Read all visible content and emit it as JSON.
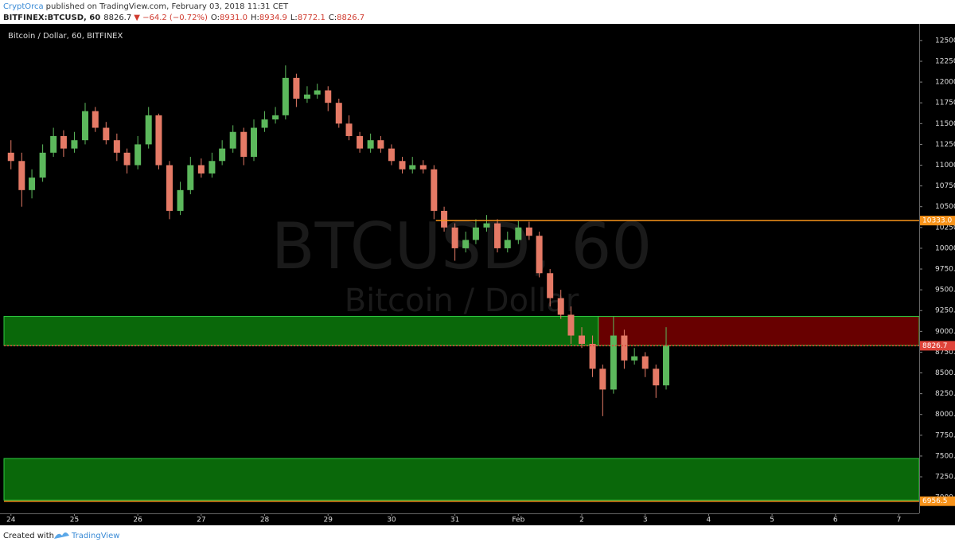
{
  "header": {
    "author": "CryptOrca",
    "published": "published on TradingView.com, February 03, 2018 11:31 CET",
    "symbol": "BITFINEX:BTCUSD, 60",
    "last": "8826.7",
    "change": "▼ −64.2 (−0.72%)",
    "ohlc": [
      {
        "label": "O:",
        "value": "8931.0"
      },
      {
        "label": "H:",
        "value": "8934.9"
      },
      {
        "label": "L:",
        "value": "8772.1"
      },
      {
        "label": "C:",
        "value": "8826.7"
      }
    ]
  },
  "footer": {
    "created": "Created with",
    "brand": "TradingView"
  },
  "chart_data": {
    "type": "candlestick",
    "title": "Bitcoin / Dollar, 60, BITFINEX",
    "watermark": "BTCUSD, 60",
    "watermark_sub": "Bitcoin / Dollar",
    "up_color": "#5cb85c",
    "down_color": "#e57a66",
    "xlim": [
      -0.11,
      14.32
    ],
    "ylim": [
      6810,
      12700
    ],
    "xticks": [
      {
        "value": 0,
        "label": "24"
      },
      {
        "value": 1,
        "label": "25"
      },
      {
        "value": 2,
        "label": "26"
      },
      {
        "value": 3,
        "label": "27"
      },
      {
        "value": 4,
        "label": "28"
      },
      {
        "value": 5,
        "label": "29"
      },
      {
        "value": 6,
        "label": "30"
      },
      {
        "value": 7,
        "label": "31"
      },
      {
        "value": 8,
        "label": "Feb"
      },
      {
        "value": 9,
        "label": "2"
      },
      {
        "value": 10,
        "label": "3"
      },
      {
        "value": 11,
        "label": "4"
      },
      {
        "value": 12,
        "label": "5"
      },
      {
        "value": 13,
        "label": "6"
      },
      {
        "value": 14,
        "label": "7"
      }
    ],
    "yticks": [
      {
        "value": 7000,
        "label": "7000.0"
      },
      {
        "value": 7250,
        "label": "7250.0"
      },
      {
        "value": 7500,
        "label": "7500.0"
      },
      {
        "value": 7750,
        "label": "7750.0"
      },
      {
        "value": 8000,
        "label": "8000.0"
      },
      {
        "value": 8250,
        "label": "8250.0"
      },
      {
        "value": 8500,
        "label": "8500.0"
      },
      {
        "value": 8750,
        "label": "8750.0"
      },
      {
        "value": 9000,
        "label": "9000.0"
      },
      {
        "value": 9250,
        "label": "9250.0"
      },
      {
        "value": 9500,
        "label": "9500.0"
      },
      {
        "value": 9750,
        "label": "9750.0"
      },
      {
        "value": 10000,
        "label": "10000.0"
      },
      {
        "value": 10250,
        "label": "10250.0"
      },
      {
        "value": 10500,
        "label": "10500.0"
      },
      {
        "value": 10750,
        "label": "10750.0"
      },
      {
        "value": 11000,
        "label": "11000.0"
      },
      {
        "value": 11250,
        "label": "11250.0"
      },
      {
        "value": 11500,
        "label": "11500.0"
      },
      {
        "value": 11750,
        "label": "11750.0"
      },
      {
        "value": 12000,
        "label": "12000.0"
      },
      {
        "value": 12250,
        "label": "12250.0"
      },
      {
        "value": 12500,
        "label": "12500.0"
      }
    ],
    "x": [
      0,
      0.17,
      0.33,
      0.5,
      0.67,
      0.83,
      1,
      1.17,
      1.33,
      1.5,
      1.67,
      1.83,
      2,
      2.17,
      2.33,
      2.5,
      2.67,
      2.83,
      3,
      3.17,
      3.33,
      3.5,
      3.67,
      3.83,
      4,
      4.17,
      4.33,
      4.5,
      4.67,
      4.83,
      5,
      5.17,
      5.33,
      5.5,
      5.67,
      5.83,
      6,
      6.17,
      6.33,
      6.5,
      6.67,
      6.83,
      7,
      7.17,
      7.33,
      7.5,
      7.67,
      7.83,
      8,
      8.17,
      8.33,
      8.5,
      8.67,
      8.83,
      9,
      9.17,
      9.33,
      9.5,
      9.67,
      9.83,
      10,
      10.17,
      10.33
    ],
    "open": [
      11150,
      11050,
      10700,
      10850,
      11150,
      11350,
      11200,
      11300,
      11650,
      11450,
      11300,
      11150,
      11000,
      11250,
      11600,
      11000,
      10450,
      10700,
      11000,
      10900,
      11050,
      11200,
      11400,
      11100,
      11450,
      11550,
      11600,
      12050,
      11800,
      11850,
      11900,
      11750,
      11500,
      11350,
      11200,
      11300,
      11200,
      11050,
      10950,
      11000,
      10950,
      10450,
      10250,
      10000,
      10100,
      10250,
      10300,
      10000,
      10100,
      10250,
      10150,
      9700,
      9400,
      9200,
      8950,
      8850,
      8550,
      8300,
      8950,
      8650,
      8700,
      8550,
      8350
    ],
    "high": [
      11300,
      11150,
      10950,
      11250,
      11450,
      11420,
      11400,
      11750,
      11700,
      11520,
      11380,
      11200,
      11350,
      11700,
      11620,
      11050,
      10800,
      11100,
      11080,
      11150,
      11300,
      11480,
      11450,
      11550,
      11650,
      11700,
      12200,
      12100,
      11950,
      11980,
      11950,
      11800,
      11600,
      11400,
      11380,
      11350,
      11250,
      11100,
      11100,
      11060,
      11000,
      10500,
      10300,
      10200,
      10350,
      10400,
      10350,
      10200,
      10330,
      10320,
      10200,
      9750,
      9500,
      9300,
      9050,
      8950,
      8600,
      9180,
      9020,
      8800,
      8750,
      8600,
      9050
    ],
    "low": [
      10950,
      10500,
      10600,
      10800,
      11100,
      11100,
      11150,
      11250,
      11400,
      11250,
      11050,
      10900,
      10950,
      11200,
      10950,
      10350,
      10400,
      10650,
      10850,
      10850,
      11000,
      11150,
      11000,
      11050,
      11400,
      11500,
      11550,
      11700,
      11750,
      11800,
      11650,
      11450,
      11300,
      11150,
      11150,
      11150,
      11000,
      10900,
      10900,
      10900,
      10350,
      10200,
      9850,
      9950,
      10050,
      10200,
      9950,
      9950,
      10050,
      10100,
      9650,
      9300,
      9150,
      8850,
      8800,
      8450,
      7980,
      8250,
      8550,
      8600,
      8450,
      8200,
      8300
    ],
    "close": [
      11050,
      10700,
      10850,
      11150,
      11350,
      11200,
      11300,
      11650,
      11450,
      11300,
      11150,
      11000,
      11250,
      11600,
      11000,
      10450,
      10700,
      11000,
      10900,
      11050,
      11200,
      11400,
      11100,
      11450,
      11550,
      11600,
      12050,
      11800,
      11850,
      11900,
      11750,
      11500,
      11350,
      11200,
      11300,
      11200,
      11050,
      10950,
      11000,
      10950,
      10450,
      10250,
      10000,
      10100,
      10250,
      10300,
      10000,
      10100,
      10250,
      10150,
      9700,
      9400,
      9200,
      8950,
      8850,
      8550,
      8300,
      8950,
      8650,
      8700,
      8550,
      8350,
      8826.7
    ],
    "zones": [
      {
        "x": [
          -0.11,
          9.26
        ],
        "y": [
          8830,
          9180
        ],
        "color": "#0b6e0b"
      },
      {
        "x": [
          9.26,
          14.32
        ],
        "y": [
          8830,
          9180
        ],
        "color": "#6e0000"
      },
      {
        "x": [
          -0.11,
          14.32
        ],
        "y": [
          6970,
          7470
        ],
        "color": "#0b6e0b"
      }
    ],
    "levels": [
      {
        "value": 10333,
        "label": "10333.0",
        "color": "#f7931a"
      },
      {
        "value": 8826.7,
        "label": "8826.7",
        "color": "#e0443a"
      },
      {
        "value": 6956.5,
        "label": "6956.5",
        "color": "#f7931a"
      }
    ]
  }
}
